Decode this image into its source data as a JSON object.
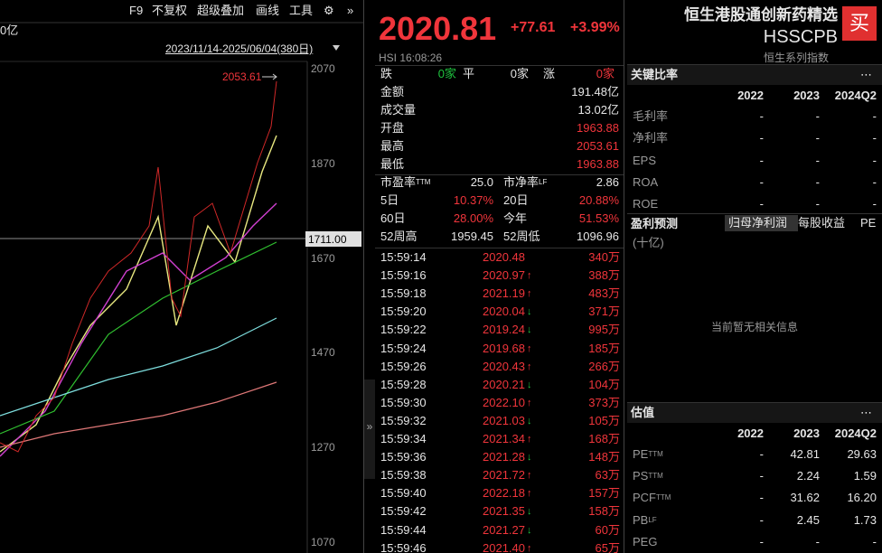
{
  "toolbar": {
    "items": [
      "F9",
      "不复权",
      "超级叠加",
      "画线",
      "工具"
    ],
    "unit": "0亿",
    "range": "2023/11/14-2025/06/04(380日)"
  },
  "chart": {
    "axis_labels": [
      "2070",
      "1870",
      "1670",
      "1470",
      "1270",
      "1070"
    ],
    "max_label": "2053.61",
    "cursor_label": "1711.00"
  },
  "quote": {
    "price": "2020.81",
    "change": "+77.61",
    "change_pct": "+3.99%",
    "code_time": "HSI  16:08:26",
    "breadth": [
      {
        "label": "跌",
        "value": "0家"
      },
      {
        "label": "平",
        "value": "0家"
      },
      {
        "label": "涨",
        "value": "0家"
      }
    ],
    "stats": [
      {
        "label": "金额",
        "value": "191.48亿",
        "color": "white"
      },
      {
        "label": "成交量",
        "value": "13.02亿",
        "color": "white"
      },
      {
        "label": "开盘",
        "value": "1963.88",
        "color": "red"
      },
      {
        "label": "最高",
        "value": "2053.61",
        "color": "red"
      },
      {
        "label": "最低",
        "value": "1963.88",
        "color": "red"
      }
    ],
    "pairs": [
      [
        {
          "label": "市盈率",
          "sup": "TTM",
          "value": "25.0",
          "color": "white"
        },
        {
          "label": "市净率",
          "sup": "LF",
          "value": "2.86",
          "color": "white"
        }
      ],
      [
        {
          "label": "5日",
          "value": "10.37%",
          "color": "red"
        },
        {
          "label": "20日",
          "value": "20.88%",
          "color": "red"
        }
      ],
      [
        {
          "label": "60日",
          "value": "28.00%",
          "color": "red"
        },
        {
          "label": "今年",
          "value": "51.53%",
          "color": "red"
        }
      ],
      [
        {
          "label": "52周高",
          "value": "1959.45",
          "color": "white"
        },
        {
          "label": "52周低",
          "value": "1096.96",
          "color": "white"
        }
      ]
    ]
  },
  "ticks": [
    {
      "time": "15:59:14",
      "price": "2020.48",
      "dir": null,
      "vol": "340万"
    },
    {
      "time": "15:59:16",
      "price": "2020.97",
      "dir": "up",
      "vol": "388万"
    },
    {
      "time": "15:59:18",
      "price": "2021.19",
      "dir": "up",
      "vol": "483万"
    },
    {
      "time": "15:59:20",
      "price": "2020.04",
      "dir": "down",
      "vol": "371万"
    },
    {
      "time": "15:59:22",
      "price": "2019.24",
      "dir": "down",
      "vol": "995万"
    },
    {
      "time": "15:59:24",
      "price": "2019.68",
      "dir": "up",
      "vol": "185万"
    },
    {
      "time": "15:59:26",
      "price": "2020.43",
      "dir": "up",
      "vol": "266万"
    },
    {
      "time": "15:59:28",
      "price": "2020.21",
      "dir": "down",
      "vol": "104万"
    },
    {
      "time": "15:59:30",
      "price": "2022.10",
      "dir": "up",
      "vol": "373万"
    },
    {
      "time": "15:59:32",
      "price": "2021.03",
      "dir": "down",
      "vol": "105万"
    },
    {
      "time": "15:59:34",
      "price": "2021.34",
      "dir": "up",
      "vol": "168万"
    },
    {
      "time": "15:59:36",
      "price": "2021.28",
      "dir": "down",
      "vol": "148万"
    },
    {
      "time": "15:59:38",
      "price": "2021.72",
      "dir": "up",
      "vol": "63万"
    },
    {
      "time": "15:59:40",
      "price": "2022.18",
      "dir": "up",
      "vol": "157万"
    },
    {
      "time": "15:59:42",
      "price": "2021.35",
      "dir": "down",
      "vol": "158万"
    },
    {
      "time": "15:59:44",
      "price": "2021.27",
      "dir": "down",
      "vol": "60万"
    },
    {
      "time": "15:59:46",
      "price": "2021.40",
      "dir": "up",
      "vol": "65万"
    }
  ],
  "header": {
    "name": "恒生港股通创新药精选",
    "code": "HSSCPB",
    "buy": "买",
    "series": "恒生系列指数"
  },
  "ratios": {
    "title": "关键比率",
    "years": [
      "2022",
      "2023",
      "2024Q2"
    ],
    "rows": [
      {
        "label": "毛利率",
        "values": [
          "-",
          "-",
          "-"
        ]
      },
      {
        "label": "净利率",
        "values": [
          "-",
          "-",
          "-"
        ]
      },
      {
        "label": "EPS",
        "values": [
          "-",
          "-",
          "-"
        ]
      },
      {
        "label": "ROA",
        "values": [
          "-",
          "-",
          "-"
        ]
      },
      {
        "label": "ROE",
        "values": [
          "-",
          "-",
          "-"
        ]
      }
    ]
  },
  "forecast": {
    "title": "盈利预测",
    "tabs": [
      "归母净利润",
      "每股收益",
      "PE"
    ],
    "unit": "(十亿)",
    "empty": "当前暂无相关信息"
  },
  "valuation": {
    "title": "估值",
    "years": [
      "2022",
      "2023",
      "2024Q2"
    ],
    "rows": [
      {
        "label": "PE",
        "sup": "TTM",
        "values": [
          "-",
          "42.81",
          "29.63"
        ]
      },
      {
        "label": "PS",
        "sup": "TTM",
        "values": [
          "-",
          "2.24",
          "1.59"
        ]
      },
      {
        "label": "PCF",
        "sup": "TTM",
        "values": [
          "-",
          "31.62",
          "16.20"
        ]
      },
      {
        "label": "PB",
        "sup": "LF",
        "values": [
          "-",
          "2.45",
          "1.73"
        ]
      },
      {
        "label": "PEG",
        "values": [
          "-",
          "-",
          "-"
        ]
      }
    ]
  }
}
